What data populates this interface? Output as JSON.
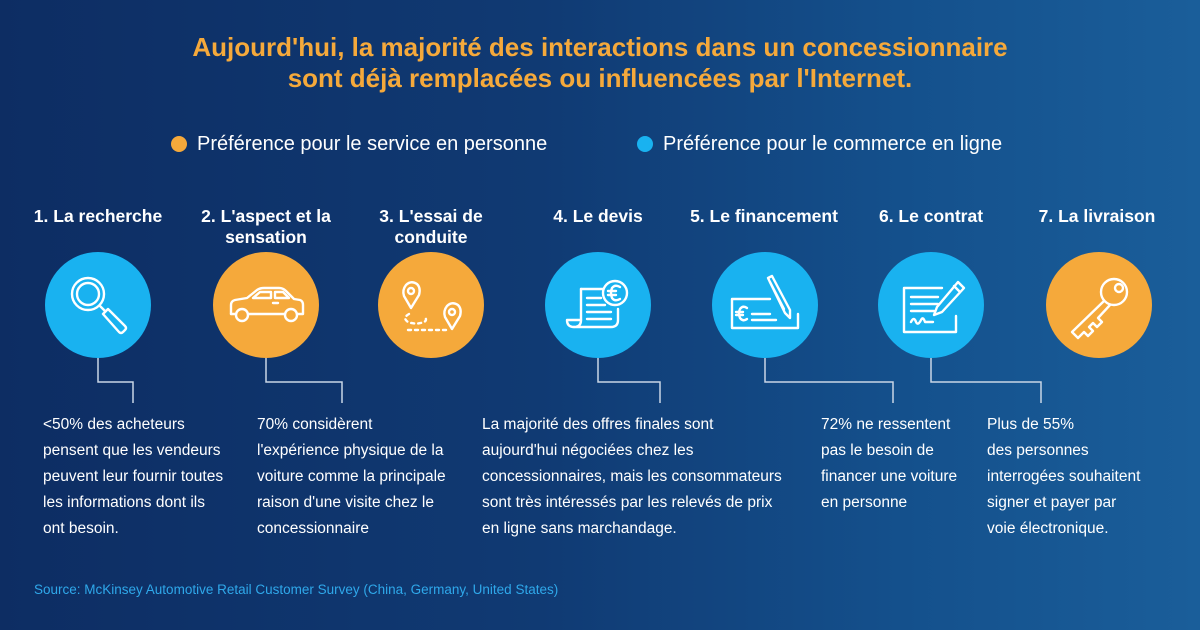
{
  "title": {
    "line1": "Aujourd'hui, la majorité des interactions dans un concessionnaire",
    "line2": "sont déjà remplacées ou influencées par l'Internet."
  },
  "legend": [
    {
      "label": "Préférence pour le service en personne",
      "color": "#f5a93b"
    },
    {
      "label": "Préférence pour le commerce en ligne",
      "color": "#19b2f0"
    }
  ],
  "steps": [
    {
      "title": "1. La recherche",
      "icon": "magnifier-icon",
      "preference": "online"
    },
    {
      "title": "2. L'aspect et la sensation",
      "icon": "car-icon",
      "preference": "in-person"
    },
    {
      "title": "3. L'essai de conduite",
      "icon": "route-pins-icon",
      "preference": "in-person"
    },
    {
      "title": "4. Le devis",
      "icon": "euro-invoice-icon",
      "preference": "online"
    },
    {
      "title": "5. Le financement",
      "icon": "euro-cheque-icon",
      "preference": "online"
    },
    {
      "title": "6. Le contrat",
      "icon": "contract-sign-icon",
      "preference": "online"
    },
    {
      "title": "7. La livraison",
      "icon": "key-icon",
      "preference": "in-person"
    }
  ],
  "notes": [
    {
      "lines": [
        "<50% des acheteurs",
        "pensent que les vendeurs",
        "peuvent leur fournir toutes",
        "les informations dont ils",
        "ont besoin."
      ]
    },
    {
      "lines": [
        "70% considèrent",
        "l'expérience physique de la",
        "voiture comme la principale",
        "raison d'une visite chez le",
        "concessionnaire"
      ]
    },
    {
      "lines": [
        "La majorité des offres finales sont",
        "aujourd'hui négociées chez les",
        "concessionnaires, mais les consommateurs",
        "sont très intéressés par les relevés de prix",
        "en ligne sans marchandage."
      ]
    },
    {
      "lines": [
        "72% ne ressentent",
        "pas le besoin de",
        "financer une voiture",
        "en personne"
      ]
    },
    {
      "lines": [
        "Plus de 55%",
        "des personnes",
        "interrogées souhaitent",
        "signer et payer par",
        "voie électronique."
      ]
    }
  ],
  "source": "Source: McKinsey Automotive Retail Customer Survey (China, Germany, United States)",
  "colors": {
    "orange": "#f5a93b",
    "blue": "#19b2f0",
    "background": "#0d2d63",
    "connector": "#c9d6e6"
  }
}
